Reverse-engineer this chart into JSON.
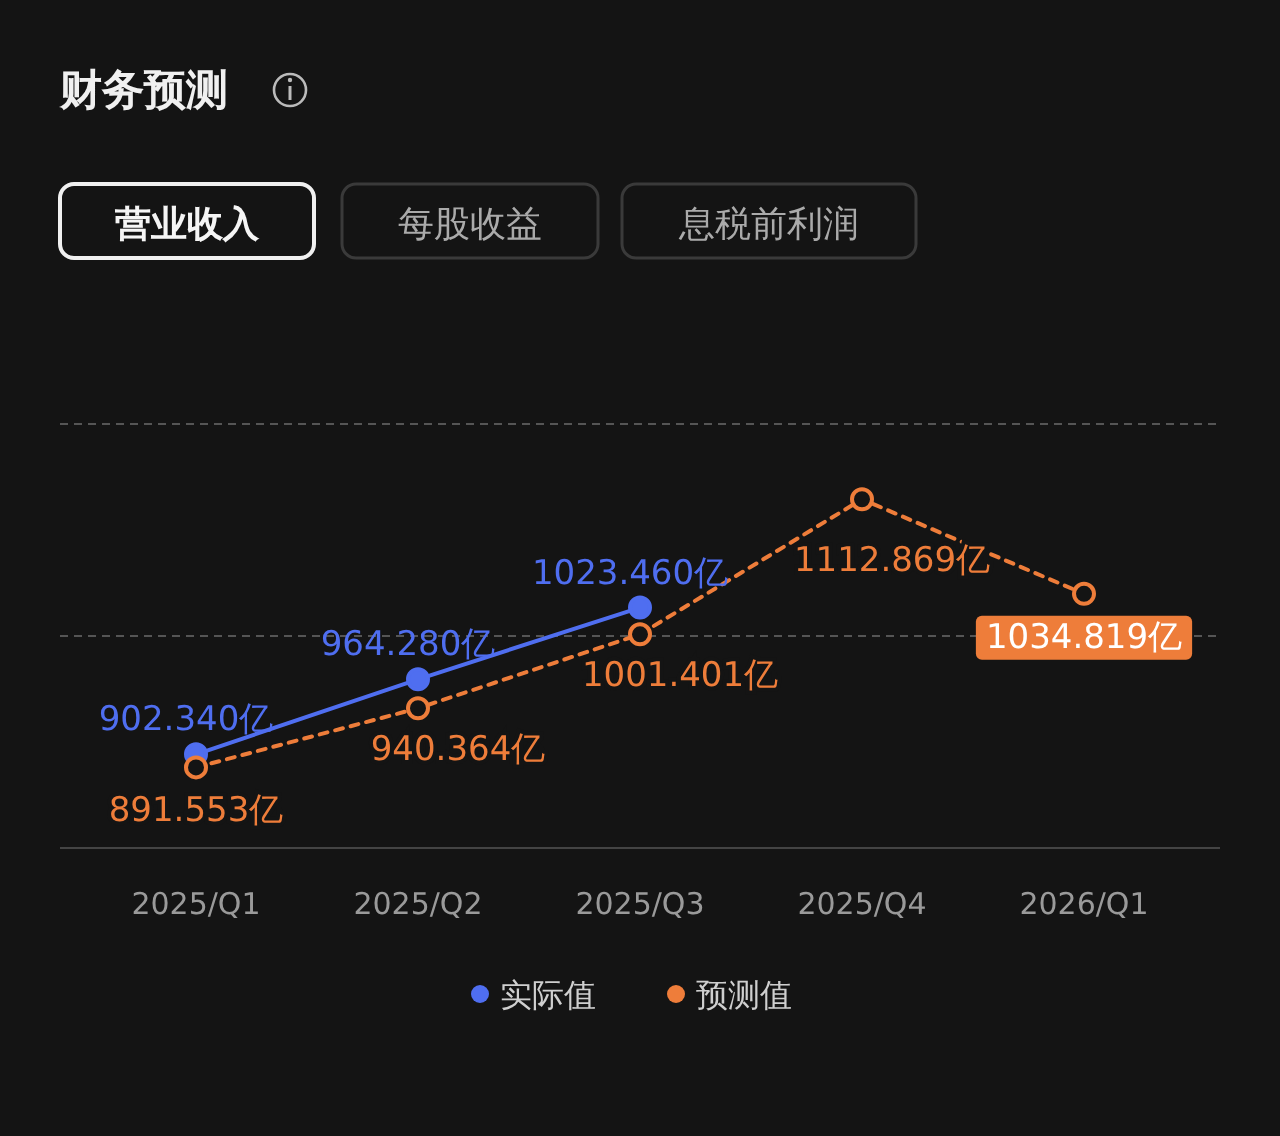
{
  "chart_data": [
    {
      "type": "other",
      "title": "财务预测",
      "annotations": [
        "营业收入",
        "每股收益",
        "息税前利润"
      ]
    },
    {
      "type": "line",
      "categories": [
        "2025/Q1",
        "2025/Q2",
        "2025/Q3",
        "2025/Q4",
        "2026/Q1"
      ],
      "ylim": [
        825,
        1175
      ],
      "ref_lines": [
        {
          "axis": "y",
          "value": 1000,
          "line_style": "dashed",
          "color": "#555555"
        },
        {
          "axis": "y",
          "value": 1175,
          "line_style": "dashed",
          "color": "#555555"
        }
      ],
      "legend": "bottom",
      "marker": "circle",
      "series": [
        {
          "name": "实际值",
          "color": "#4f6ef0",
          "line_style": "solid",
          "values": [
            902.34,
            964.28,
            1023.46,
            null,
            null
          ],
          "value_labels": [
            "902.340亿",
            "964.280亿",
            "1023.460亿",
            null,
            null
          ]
        },
        {
          "name": "预测值",
          "color": "#ee7d3a",
          "line_style": "dashed",
          "values": [
            891.553,
            940.364,
            1001.401,
            1112.869,
            1034.819
          ],
          "value_labels": [
            "891.553亿",
            "940.364亿",
            "1001.401亿",
            "1112.869亿",
            "1034.819亿"
          ]
        }
      ]
    }
  ]
}
